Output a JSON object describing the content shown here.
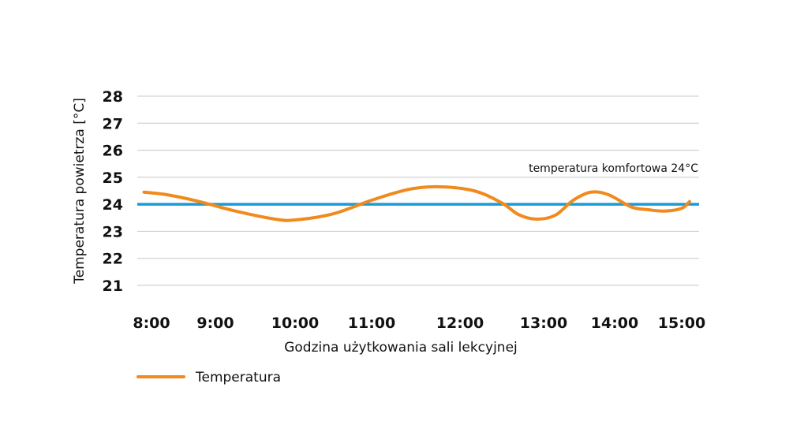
{
  "chart_data": {
    "type": "line",
    "xlabel": "Godzina użytkowania sali lekcyjnej",
    "ylabel": "Temperatura powietrza [°C]",
    "x_ticks": [
      "8:00",
      "9:00",
      "10:00",
      "11:00",
      "12:00",
      "13:00",
      "14:00",
      "15:00"
    ],
    "y_ticks": [
      21,
      22,
      23,
      24,
      25,
      26,
      27,
      28
    ],
    "ylim": [
      21,
      28
    ],
    "grid": true,
    "legend_position": "bottom-left",
    "reference_line": {
      "value": 24,
      "label": "temperatura komfortowa 24°C",
      "color": "#1a9ad6"
    },
    "series": [
      {
        "name": "Temperatura",
        "color": "#f08a1c",
        "x": [
          "7:53",
          "8:15",
          "8:45",
          "9:15",
          "9:45",
          "10:00",
          "10:30",
          "11:00",
          "11:25",
          "11:45",
          "12:10",
          "12:30",
          "12:42",
          "12:55",
          "13:10",
          "13:25",
          "13:40",
          "13:55",
          "14:15",
          "14:30",
          "14:45",
          "15:00",
          "15:07"
        ],
        "values": [
          24.45,
          24.35,
          24.1,
          23.75,
          23.45,
          23.42,
          23.65,
          24.15,
          24.55,
          24.65,
          24.5,
          24.05,
          23.62,
          23.45,
          23.6,
          24.15,
          24.45,
          24.35,
          23.9,
          23.8,
          23.75,
          23.85,
          24.1
        ]
      }
    ]
  }
}
